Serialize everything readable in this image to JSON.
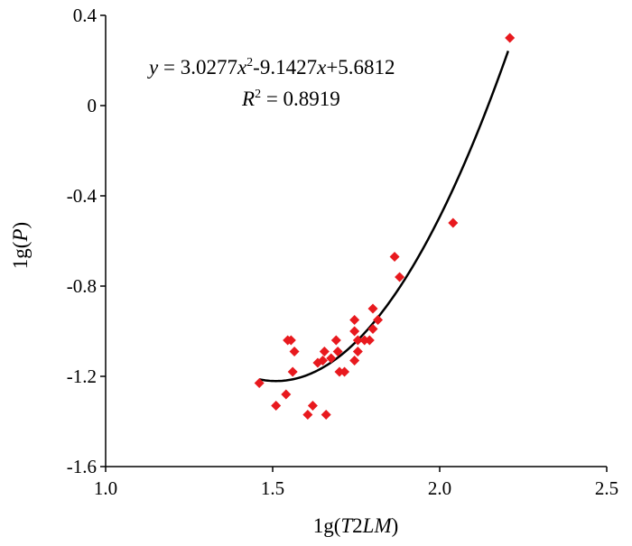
{
  "chart_data": {
    "type": "scatter",
    "xlabel": "1g(T2LM)",
    "ylabel": "1g(P)",
    "xlim": [
      1.0,
      2.5
    ],
    "ylim": [
      -1.6,
      0.4
    ],
    "x_ticks": [
      1.0,
      1.5,
      2.0,
      2.5
    ],
    "x_tick_labels": [
      "1.0",
      "1.5",
      "2.0",
      "2.5"
    ],
    "y_ticks": [
      0.4,
      0.0,
      -0.4,
      -0.8,
      -1.2,
      -1.6
    ],
    "y_tick_labels": [
      "0.4",
      "0",
      "-0.4",
      "-0.8",
      "-1.2",
      "-1.6"
    ],
    "grid": false,
    "marker_color": "#e8191e",
    "line_color": "#000000",
    "points": [
      {
        "x": 1.46,
        "y": -1.23
      },
      {
        "x": 1.51,
        "y": -1.33
      },
      {
        "x": 1.54,
        "y": -1.28
      },
      {
        "x": 1.545,
        "y": -1.04
      },
      {
        "x": 1.555,
        "y": -1.04
      },
      {
        "x": 1.56,
        "y": -1.18
      },
      {
        "x": 1.565,
        "y": -1.09
      },
      {
        "x": 1.605,
        "y": -1.37
      },
      {
        "x": 1.62,
        "y": -1.33
      },
      {
        "x": 1.635,
        "y": -1.14
      },
      {
        "x": 1.65,
        "y": -1.13
      },
      {
        "x": 1.655,
        "y": -1.09
      },
      {
        "x": 1.66,
        "y": -1.37
      },
      {
        "x": 1.675,
        "y": -1.12
      },
      {
        "x": 1.69,
        "y": -1.04
      },
      {
        "x": 1.695,
        "y": -1.09
      },
      {
        "x": 1.7,
        "y": -1.18
      },
      {
        "x": 1.715,
        "y": -1.18
      },
      {
        "x": 1.745,
        "y": -0.95
      },
      {
        "x": 1.745,
        "y": -1.0
      },
      {
        "x": 1.745,
        "y": -1.13
      },
      {
        "x": 1.755,
        "y": -1.04
      },
      {
        "x": 1.755,
        "y": -1.09
      },
      {
        "x": 1.775,
        "y": -1.04
      },
      {
        "x": 1.79,
        "y": -1.04
      },
      {
        "x": 1.8,
        "y": -0.9
      },
      {
        "x": 1.8,
        "y": -0.99
      },
      {
        "x": 1.815,
        "y": -0.95
      },
      {
        "x": 1.865,
        "y": -0.67
      },
      {
        "x": 1.88,
        "y": -0.76
      },
      {
        "x": 2.04,
        "y": -0.52
      },
      {
        "x": 2.21,
        "y": 0.3
      }
    ],
    "trendline": {
      "kind": "polynomial",
      "coefficients": [
        3.0277,
        -9.1427,
        5.6812
      ],
      "x_range": [
        1.46,
        2.205
      ]
    },
    "annotations": {
      "equation": "y = 3.0277x²-9.1427x+5.6812",
      "r_squared": "R² = 0.8919"
    }
  }
}
